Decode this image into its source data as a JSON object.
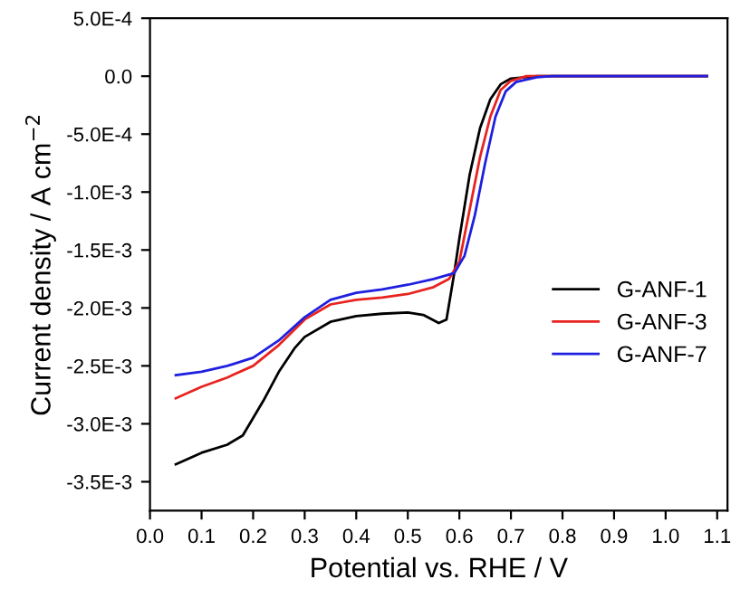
{
  "chart_data": {
    "type": "line",
    "xlabel": "Potential vs. RHE / V",
    "ylabel": "Current density / A cm$^{−2}$",
    "xlim": [
      0,
      1.12
    ],
    "ylim": [
      -0.00375,
      0.0005
    ],
    "xticks": [
      {
        "value": 0,
        "label": "0.0"
      },
      {
        "value": 0.1,
        "label": "0.1"
      },
      {
        "value": 0.2,
        "label": "0.2"
      },
      {
        "value": 0.3,
        "label": "0.3"
      },
      {
        "value": 0.4,
        "label": "0.4"
      },
      {
        "value": 0.5,
        "label": "0.5"
      },
      {
        "value": 0.6,
        "label": "0.6"
      },
      {
        "value": 0.7,
        "label": "0.7"
      },
      {
        "value": 0.8,
        "label": "0.8"
      },
      {
        "value": 0.9,
        "label": "0.9"
      },
      {
        "value": 1.0,
        "label": "1.0"
      },
      {
        "value": 1.1,
        "label": "1.1"
      }
    ],
    "yticks": [
      {
        "value": 0.0005,
        "label": "5.0E-4"
      },
      {
        "value": 0,
        "label": "0.0"
      },
      {
        "value": -0.0005,
        "label": "-5.0E-4"
      },
      {
        "value": -0.001,
        "label": "-1.0E-3"
      },
      {
        "value": -0.0015,
        "label": "-1.5E-3"
      },
      {
        "value": -0.002,
        "label": "-2.0E-3"
      },
      {
        "value": -0.0025,
        "label": "-2.5E-3"
      },
      {
        "value": -0.003,
        "label": "-3.0E-3"
      },
      {
        "value": -0.0035,
        "label": "-3.5E-3"
      }
    ],
    "grid": false,
    "legend": "right",
    "marker": "none",
    "line_style": "solid",
    "series": [
      {
        "name": "G-ANF-1",
        "color": "#000000",
        "x": [
          0.05,
          0.1,
          0.15,
          0.18,
          0.2,
          0.22,
          0.25,
          0.28,
          0.3,
          0.35,
          0.4,
          0.45,
          0.5,
          0.53,
          0.56,
          0.575,
          0.59,
          0.6,
          0.62,
          0.64,
          0.66,
          0.68,
          0.7,
          0.75,
          1.08
        ],
        "values": [
          -0.00335,
          -0.00325,
          -0.00318,
          -0.0031,
          -0.00295,
          -0.0028,
          -0.00255,
          -0.00235,
          -0.00225,
          -0.00212,
          -0.00207,
          -0.00205,
          -0.00204,
          -0.00206,
          -0.00213,
          -0.0021,
          -0.0017,
          -0.0014,
          -0.00085,
          -0.00045,
          -0.0002,
          -7e-05,
          -2e-05,
          0,
          0
        ]
      },
      {
        "name": "G-ANF-3",
        "color": "#e8231f",
        "x": [
          0.05,
          0.1,
          0.15,
          0.2,
          0.25,
          0.3,
          0.35,
          0.4,
          0.45,
          0.5,
          0.55,
          0.58,
          0.6,
          0.62,
          0.64,
          0.66,
          0.68,
          0.7,
          0.73,
          1.08
        ],
        "values": [
          -0.00278,
          -0.00268,
          -0.0026,
          -0.0025,
          -0.00232,
          -0.0021,
          -0.00197,
          -0.00193,
          -0.00191,
          -0.00188,
          -0.00182,
          -0.00175,
          -0.0016,
          -0.00115,
          -0.0007,
          -0.00035,
          -0.00012,
          -4e-05,
          0,
          0
        ]
      },
      {
        "name": "G-ANF-7",
        "color": "#1f1fe0",
        "x": [
          0.05,
          0.1,
          0.15,
          0.2,
          0.25,
          0.3,
          0.35,
          0.4,
          0.45,
          0.5,
          0.55,
          0.59,
          0.61,
          0.63,
          0.65,
          0.67,
          0.69,
          0.71,
          0.75,
          0.78,
          1.08
        ],
        "values": [
          -0.00258,
          -0.00255,
          -0.0025,
          -0.00243,
          -0.00228,
          -0.00208,
          -0.00193,
          -0.00187,
          -0.00184,
          -0.0018,
          -0.00175,
          -0.0017,
          -0.00155,
          -0.0012,
          -0.00075,
          -0.00035,
          -0.00013,
          -5e-05,
          -1e-05,
          0,
          0
        ]
      }
    ]
  }
}
